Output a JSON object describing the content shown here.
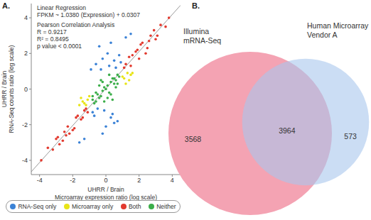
{
  "chart_data": [
    {
      "type": "scatter",
      "title": "A.",
      "annotations": [
        "Linear Regression",
        "FPKM ~ 1.0380 (Expression) + 0.0307",
        "Pearson Correlation Analysis",
        "R = 0.9217",
        "R² = 0.8495",
        "p value < 0.0001"
      ],
      "regression_line": {
        "slope": 1.038,
        "intercept": 0.0307
      },
      "xlabel": [
        "UHRR / Brain",
        "Microarray expression ratio (log scale)"
      ],
      "ylabel": [
        "UHRR / Brain",
        "RNA-Seq counts ratio (log scale)"
      ],
      "xlim": [
        -4.5,
        4.5
      ],
      "ylim": [
        -4.8,
        4.8
      ],
      "xticks": [
        -4,
        -2,
        0,
        2,
        4
      ],
      "yticks": [
        -4,
        -2,
        0,
        2,
        4
      ],
      "grid": false,
      "legend": "bottom",
      "series": [
        {
          "name": "RNA-Seq only",
          "color": "#3b82d6",
          "x": [
            0.2,
            -0.3,
            0.5,
            -0.6,
            0.8,
            0.1,
            -0.1,
            0.4,
            -0.5,
            0.7,
            0.3,
            -0.8,
            0.6,
            -0.2,
            0.0,
            -0.4,
            0.9,
            -0.7,
            0.5,
            -0.9,
            1.2,
            -1.3,
            0.3,
            -0.2,
            1.5,
            -1.6
          ],
          "values": [
            1.3,
            1.1,
            1.6,
            1.4,
            1.9,
            2.0,
            -1.2,
            -1.4,
            -1.1,
            -1.8,
            -1.6,
            -1.3,
            1.2,
            1.7,
            -2.1,
            2.4,
            1.5,
            -1.5,
            -1.9,
            1.1,
            2.9,
            -2.8,
            2.6,
            -2.5,
            3.1,
            -3.0
          ]
        },
        {
          "name": "Microarray only",
          "color": "#e8e417",
          "x": [
            1.1,
            1.3,
            1.2,
            1.5,
            1.0,
            1.4,
            -1.1,
            -1.2,
            -1.4,
            -1.0,
            -1.3,
            -1.5,
            1.6,
            -1.6
          ],
          "values": [
            0.6,
            0.9,
            0.3,
            0.8,
            0.7,
            0.5,
            -0.6,
            -0.9,
            -0.7,
            -0.4,
            -0.8,
            -0.5,
            0.9,
            -0.9
          ]
        },
        {
          "name": "Both",
          "color": "#e2392e",
          "x": [
            1.2,
            1.5,
            1.8,
            2.0,
            2.2,
            2.5,
            2.7,
            3.0,
            3.3,
            3.6,
            1.4,
            1.9,
            2.4,
            2.9,
            1.1,
            1.6,
            2.1,
            3.1,
            3.8,
            2.6,
            -1.2,
            -1.5,
            -1.8,
            -2.0,
            -2.3,
            -2.6,
            -2.9,
            -3.2,
            -3.5,
            -1.4,
            -1.9,
            -2.4,
            -2.8,
            -3.9,
            -1.1,
            -1.7,
            -2.2,
            -3.0,
            -2.5,
            -1.3
          ],
          "values": [
            1.4,
            1.3,
            2.1,
            1.7,
            2.6,
            2.3,
            3.0,
            2.8,
            3.6,
            3.5,
            1.8,
            2.2,
            2.0,
            3.3,
            1.2,
            1.9,
            2.5,
            3.0,
            4.0,
            2.7,
            -1.1,
            -1.7,
            -1.6,
            -2.3,
            -2.1,
            -2.9,
            -2.7,
            -3.4,
            -3.3,
            -1.6,
            -2.2,
            -2.6,
            -3.1,
            -4.0,
            -1.3,
            -1.5,
            -2.5,
            -2.8,
            -2.4,
            -1.2
          ]
        },
        {
          "name": "Neither",
          "color": "#3cae4a",
          "x": [
            0.1,
            -0.2,
            0.3,
            -0.4,
            0.5,
            -0.6,
            0.7,
            -0.8,
            0.2,
            -0.1,
            0.4,
            -0.3,
            0.6,
            -0.5,
            0.8,
            0.0,
            -0.7,
            0.3,
            -0.2,
            0.5,
            0.1,
            -0.4,
            0.6,
            -0.6,
            0.2,
            -0.8,
            0.4,
            -0.1,
            0.7,
            -0.3
          ],
          "values": [
            0.2,
            -0.1,
            0.4,
            -0.5,
            0.3,
            -0.7,
            0.8,
            -0.6,
            -0.2,
            0.1,
            0.6,
            -0.4,
            0.5,
            -0.3,
            0.7,
            0.0,
            -0.8,
            -0.3,
            0.4,
            0.6,
            -0.5,
            0.2,
            0.1,
            -0.2,
            0.8,
            -0.4,
            -0.6,
            -0.7,
            0.3,
            0.5
          ]
        }
      ]
    },
    {
      "type": "venn",
      "title": "B.",
      "sets": [
        {
          "name": [
            "Illumina",
            "mRNA-Seq"
          ],
          "color": "#f4a3b3"
        },
        {
          "name": [
            "Human Microarray",
            "Vendor A"
          ],
          "color": "#a9c7ec"
        }
      ],
      "regions": {
        "only_first": 3568,
        "both": 3964,
        "only_second": 573
      }
    }
  ]
}
